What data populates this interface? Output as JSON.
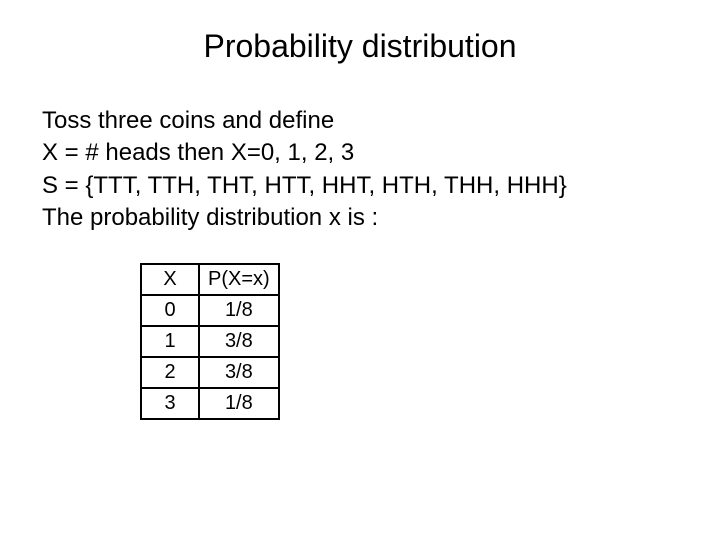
{
  "title": "Probability distribution",
  "lines": {
    "l1": "Toss three coins and define",
    "l2": "X = # heads then X=0, 1, 2, 3",
    "l3": "S = {TTT, TTH, THT, HTT, HHT, HTH, THH, HHH}",
    "l4": "The probability distribution x is :"
  },
  "table": {
    "headers": {
      "c1": "X",
      "c2": "P(X=x)"
    },
    "rows": [
      {
        "x": "0",
        "p": "1/8"
      },
      {
        "x": "1",
        "p": "3/8"
      },
      {
        "x": "2",
        "p": "3/8"
      },
      {
        "x": "3",
        "p": "1/8"
      }
    ]
  }
}
